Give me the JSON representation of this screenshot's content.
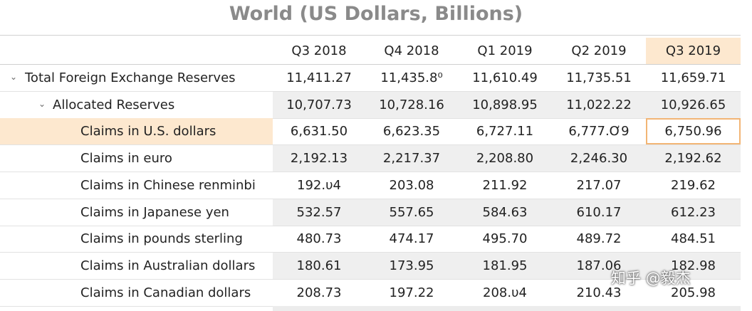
{
  "title": "World (US Dollars, Billions)",
  "columns": [
    "Q3 2018",
    "Q4 2018",
    "Q1 2019",
    "Q2 2019",
    "Q3 2019"
  ],
  "highlight_color": "#fde8cf",
  "selected_border_color": "#f2b575",
  "rows": [
    {
      "label": "Total Foreign Exchange Reserves",
      "level": 0,
      "expanded": true,
      "chevron_icon": "chevron-down-icon",
      "values": [
        "11,411.27",
        "11,435.8⁰",
        "11,610.49",
        "11,735.51",
        "11,659.71"
      ]
    },
    {
      "label": "Allocated Reserves",
      "level": 1,
      "expanded": true,
      "chevron_icon": "chevron-down-icon",
      "values": [
        "10,707.73",
        "10,728.16",
        "10,898.95",
        "11,022.22",
        "10,926.65"
      ]
    },
    {
      "label": "Claims in U.S. dollars",
      "level": 2,
      "selected": true,
      "values": [
        "6,631.50",
        "6,623.35",
        "6,727.11",
        "6,777.Ơ9",
        "6,750.96"
      ]
    },
    {
      "label": "Claims in euro",
      "level": 2,
      "values": [
        "2,192.13",
        "2,217.37",
        "2,208.80",
        "2,246.30",
        "2,192.62"
      ]
    },
    {
      "label": "Claims in Chinese renminbi",
      "level": 2,
      "values": [
        "192.υ4",
        "203.08",
        "211.92",
        "217.07",
        "219.62"
      ]
    },
    {
      "label": "Claims in Japanese yen",
      "level": 2,
      "values": [
        "532.57",
        "557.65",
        "584.63",
        "610.17",
        "612.23"
      ]
    },
    {
      "label": "Claims in pounds sterling",
      "level": 2,
      "values": [
        "480.73",
        "474.17",
        "495.70",
        "489.72",
        "484.51"
      ]
    },
    {
      "label": "Claims in Australian dollars",
      "level": 2,
      "values": [
        "180.61",
        "173.95",
        "181.95",
        "187.06",
        "182.98"
      ]
    },
    {
      "label": "Claims in Canadian dollars",
      "level": 2,
      "values": [
        "208.73",
        "197.22",
        "208.υ4",
        "210.43",
        "205.98"
      ]
    }
  ],
  "watermark": "知乎 @毅杰"
}
